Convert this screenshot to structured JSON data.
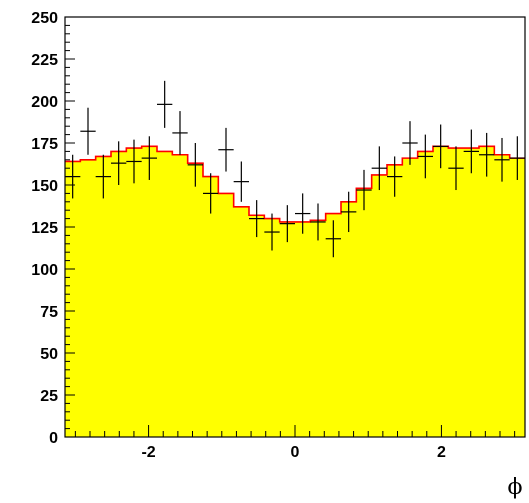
{
  "chart_data": {
    "type": "histogram",
    "title": "",
    "xlabel": "ϕ",
    "ylabel": "",
    "xlim": [
      -3.1416,
      3.1416
    ],
    "ylim": [
      0,
      250
    ],
    "grid": false,
    "legend": "none",
    "x_ticks": [
      -2,
      0,
      2
    ],
    "x_tick_labels": [
      "-2",
      "0",
      "2"
    ],
    "y_ticks": [
      0,
      25,
      50,
      75,
      100,
      125,
      150,
      175,
      200,
      225,
      250
    ],
    "y_tick_labels": [
      "0",
      "25",
      "50",
      "75",
      "100",
      "125",
      "150",
      "175",
      "200",
      "225",
      "250"
    ],
    "bins": 30,
    "series": [
      {
        "kind": "filled-histogram",
        "fill_color": "#ffff00",
        "line_color": "#ff0000",
        "values": [
          164,
          165,
          167,
          170,
          172,
          173,
          170,
          168,
          163,
          155,
          145,
          137,
          132,
          130,
          128,
          128,
          129,
          133,
          140,
          148,
          156,
          162,
          166,
          170,
          173,
          172,
          172,
          173,
          168,
          166
        ]
      },
      {
        "kind": "data-points-with-errors",
        "color": "#000000",
        "values": [
          155,
          182,
          155,
          163,
          164,
          166,
          198,
          181,
          162,
          145,
          171,
          152,
          130,
          122,
          127,
          133,
          128,
          118,
          134,
          147,
          160,
          155,
          175,
          167,
          173,
          160,
          170,
          168,
          165,
          166
        ],
        "errors": [
          13,
          14,
          13,
          13,
          13,
          13,
          14,
          13,
          13,
          12,
          13,
          12,
          11,
          11,
          11,
          12,
          11,
          11,
          12,
          12,
          13,
          12,
          13,
          13,
          13,
          13,
          13,
          13,
          13,
          13
        ]
      }
    ]
  }
}
